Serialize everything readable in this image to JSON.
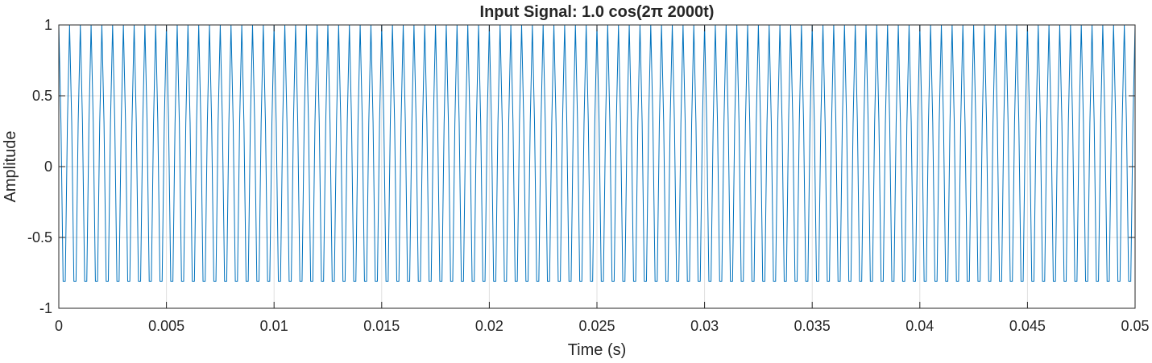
{
  "chart_data": {
    "type": "line",
    "title": "Input  Signal:  1.0  cos(2π  2000t)",
    "xlabel": "Time (s)",
    "ylabel": "Amplitude",
    "xlim": [
      0,
      0.05
    ],
    "ylim": [
      -1,
      1
    ],
    "x_ticks": [
      0,
      0.005,
      0.01,
      0.015,
      0.02,
      0.025,
      0.03,
      0.035,
      0.04,
      0.045,
      0.05
    ],
    "x_tick_labels": [
      "0",
      "0.005",
      "0.01",
      "0.015",
      "0.02",
      "0.025",
      "0.03",
      "0.035",
      "0.04",
      "0.045",
      "0.05"
    ],
    "y_ticks": [
      1,
      0.5,
      0,
      -0.5,
      -1
    ],
    "y_tick_labels": [
      "1",
      "0.5",
      "0",
      "-0.5",
      "-1"
    ],
    "grid": true,
    "series": [
      {
        "color": "#0072bd",
        "function": "1.0*cos(2*pi*2000*t)",
        "amplitude": 1.0,
        "frequency_hz": 2000,
        "t_start": 0,
        "t_end": 0.05,
        "sample_interval": 0.0001
      }
    ]
  }
}
